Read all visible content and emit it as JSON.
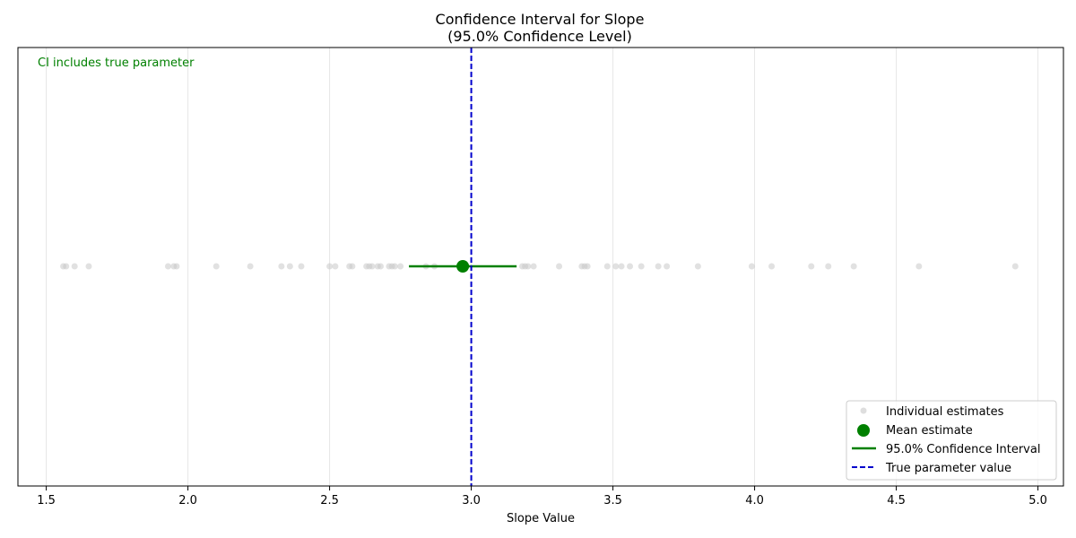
{
  "chart_data": {
    "type": "scatter",
    "title_line1": "Confidence Interval for Slope",
    "title_line2": "(95.0% Confidence Level)",
    "xlabel": "Slope Value",
    "ylabel": "",
    "xlim": [
      1.4,
      5.09
    ],
    "x_ticks": [
      1.5,
      2.0,
      2.5,
      3.0,
      3.5,
      4.0,
      4.5,
      5.0
    ],
    "x_tick_labels": [
      "1.5",
      "2.0",
      "2.5",
      "3.0",
      "3.5",
      "4.0",
      "4.5",
      "5.0"
    ],
    "grid": "x",
    "individual_estimates": [
      1.56,
      1.57,
      1.6,
      1.65,
      1.93,
      1.95,
      1.96,
      2.1,
      2.22,
      2.33,
      2.36,
      2.4,
      2.5,
      2.52,
      2.57,
      2.58,
      2.63,
      2.64,
      2.65,
      2.67,
      2.68,
      2.71,
      2.72,
      2.73,
      2.75,
      2.84,
      2.87,
      3.18,
      3.19,
      3.2,
      3.22,
      3.31,
      3.39,
      3.4,
      3.41,
      3.48,
      3.51,
      3.53,
      3.56,
      3.6,
      3.66,
      3.69,
      3.8,
      3.99,
      4.06,
      4.2,
      4.26,
      4.35,
      4.58,
      4.92
    ],
    "mean_estimate": 2.97,
    "ci": [
      2.78,
      3.16
    ],
    "true_value": 3.0,
    "annotation": "CI includes true parameter",
    "legend": {
      "position": "lower-right",
      "entries": [
        "Individual estimates",
        "Mean estimate",
        "95.0% Confidence Interval",
        "True parameter value"
      ]
    },
    "colors": {
      "estimates": "#c8c8c8",
      "mean": "#008000",
      "ci": "#008000",
      "true_line": "#0000cc",
      "annotation": "#008000",
      "grid": "#e6e6e6"
    }
  }
}
